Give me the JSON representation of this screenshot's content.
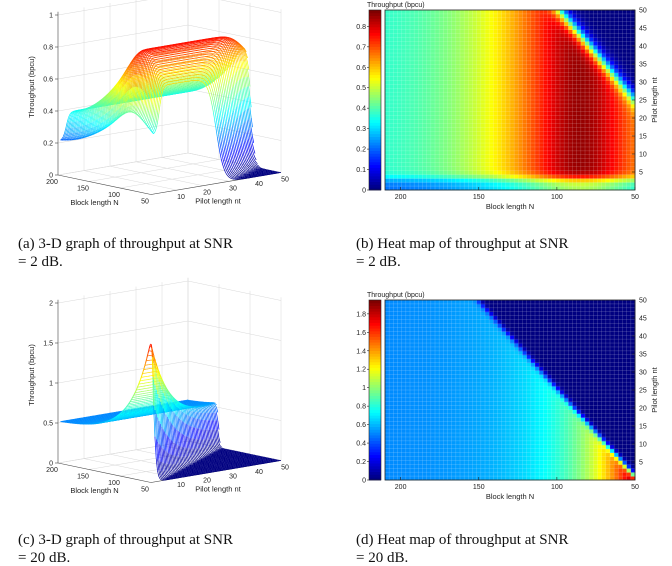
{
  "chart_data": [
    {
      "type": "surface",
      "caption": [
        "(a) 3-D graph of throughput at SNR",
        "= 2 dB."
      ],
      "zlabel": "Throughput (bpcu)",
      "xlabel": "Block length N",
      "ylabel": "Pilot length nt",
      "x_ticks": [
        "200",
        "150",
        "100",
        "50"
      ],
      "y_ticks": [
        "10",
        "20",
        "30",
        "40",
        "50"
      ],
      "z_ticks": [
        "0",
        "0.2",
        "0.4",
        "0.6",
        "0.8",
        "1"
      ],
      "zlim": [
        0,
        1
      ],
      "snr_db": 2,
      "peak_throughput": 0.8,
      "colormap": "jet",
      "grid": true
    },
    {
      "type": "heatmap",
      "caption": [
        "(b) Heat map of throughput at SNR",
        "= 2 dB."
      ],
      "colorbar_title": "Throughput (bpcu)",
      "colorbar_ticks": [
        "0",
        "0.1",
        "0.2",
        "0.3",
        "0.4",
        "0.5",
        "0.6",
        "0.7",
        "0.8"
      ],
      "xlabel": "Block length N",
      "ylabel": "Pilot length nt",
      "x_ticks": [
        "200",
        "150",
        "100",
        "50"
      ],
      "y_ticks": [
        "5",
        "10",
        "15",
        "20",
        "25",
        "30",
        "35",
        "40",
        "45",
        "50"
      ],
      "xlim": [
        210,
        50
      ],
      "ylim": [
        0,
        50
      ],
      "clim": [
        0,
        0.88
      ],
      "snr_db": 2,
      "colormap": "jet"
    },
    {
      "type": "surface",
      "caption": [
        "(c) 3-D graph of throughput at SNR",
        "= 20 dB."
      ],
      "zlabel": "Throughput (bpcu)",
      "xlabel": "Block length N",
      "ylabel": "Pilot length nt",
      "x_ticks": [
        "200",
        "150",
        "100",
        "50"
      ],
      "y_ticks": [
        "10",
        "20",
        "30",
        "40",
        "50"
      ],
      "z_ticks": [
        "0",
        "0.5",
        "1",
        "1.5",
        "2"
      ],
      "zlim": [
        0,
        2
      ],
      "snr_db": 20,
      "peak_throughput": 1.9,
      "colormap": "jet",
      "grid": true
    },
    {
      "type": "heatmap",
      "caption": [
        "(d) Heat map of throughput at SNR",
        "= 20 dB."
      ],
      "colorbar_title": "Throughput (bpcu)",
      "colorbar_ticks": [
        "0",
        "0.2",
        "0.4",
        "0.6",
        "0.8",
        "1",
        "1.2",
        "1.4",
        "1.6",
        "1.8"
      ],
      "xlabel": "Block length N",
      "ylabel": "Pilot length nt",
      "x_ticks": [
        "200",
        "150",
        "100",
        "50"
      ],
      "y_ticks": [
        "5",
        "10",
        "15",
        "20",
        "25",
        "30",
        "35",
        "40",
        "45",
        "50"
      ],
      "xlim": [
        210,
        50
      ],
      "ylim": [
        0,
        50
      ],
      "clim": [
        0,
        1.95
      ],
      "snr_db": 20,
      "colormap": "jet"
    }
  ]
}
